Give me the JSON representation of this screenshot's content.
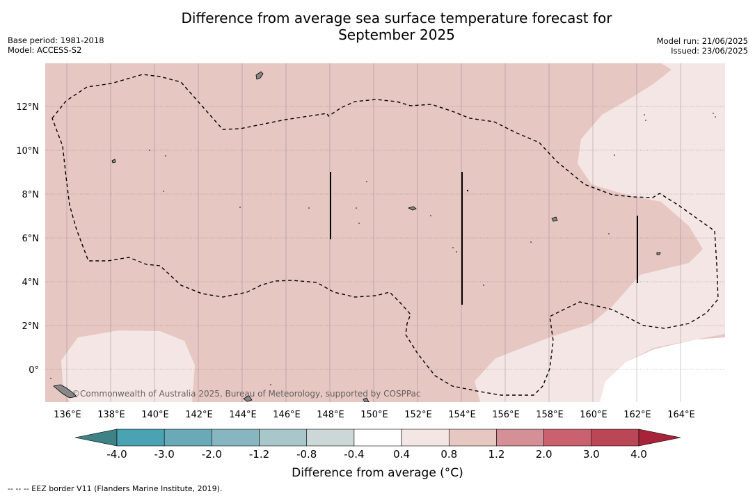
{
  "title_line1": "Difference from average sea surface temperature forecast for",
  "title_line2": "September 2025",
  "meta_left": [
    "Base period: 1981-2018",
    "Model: ACCESS-S2"
  ],
  "meta_right": [
    "Model run: 21/06/2025",
    "Issued: 23/06/2025"
  ],
  "map": {
    "lat_labels": [
      "12°N",
      "10°N",
      "8°N",
      "6°N",
      "4°N",
      "2°N",
      "0°"
    ],
    "lon_labels": [
      "136°E",
      "138°E",
      "140°E",
      "142°E",
      "144°E",
      "146°E",
      "148°E",
      "150°E",
      "152°E",
      "154°E",
      "156°E",
      "158°E",
      "160°E",
      "162°E",
      "164°E"
    ],
    "copyright": "©Commonwealth of Australia 2025, Bureau of Meteorology, supported by COSPPac",
    "field_colors": {
      "warm_0_4_0_8": "#f4e6e4",
      "warm_0_8_1_2": "#e7c7c2"
    },
    "coastline_color": "#888888",
    "eez_border_style": "dashed"
  },
  "colorbar": {
    "colors": [
      "#3f9aa6",
      "#4aa3b2",
      "#6aaab8",
      "#87b6c0",
      "#a8c7cb",
      "#ccd7d8",
      "#ffffff",
      "#f4e6e4",
      "#e7c7c2",
      "#d58f96",
      "#c9626e",
      "#bb4655"
    ],
    "extend_low_color": "#3f8286",
    "extend_high_color": "#a6233a",
    "ticks": [
      "-4.0",
      "-3.0",
      "-2.0",
      "-1.2",
      "-0.8",
      "-0.4",
      "0.4",
      "0.8",
      "1.2",
      "2.0",
      "3.0",
      "4.0"
    ],
    "label": "Difference from average (°C)"
  },
  "footer": "--  --  -- EEZ border V11 (Flanders Marine Institute, 2019)."
}
